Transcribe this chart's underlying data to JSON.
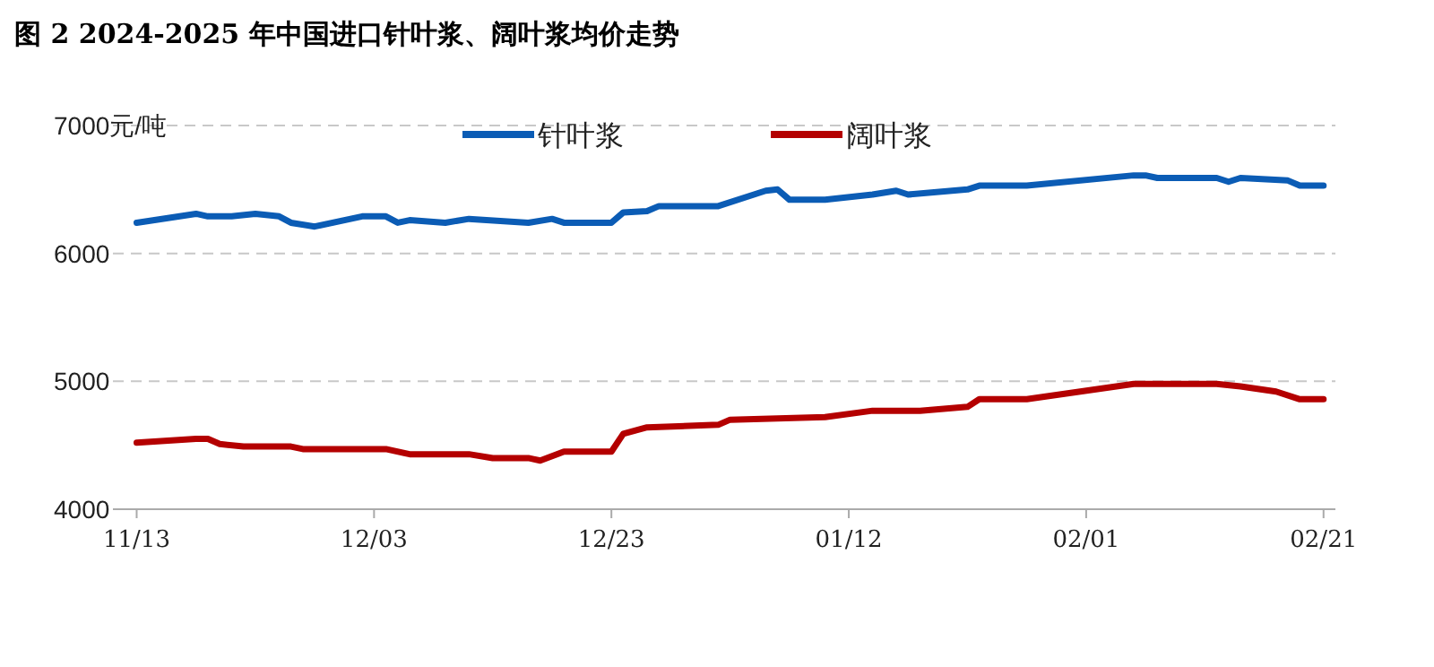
{
  "chart_data": {
    "type": "line",
    "title": "图 2 2024-2025 年中国进口针叶浆、阔叶浆均价走势",
    "xlim": [
      "2024-11-11",
      "2025-02-22"
    ],
    "xticks": [
      {
        "value": "2024-11-13",
        "label": "11/13"
      },
      {
        "value": "2024-12-03",
        "label": "12/03"
      },
      {
        "value": "2024-12-23",
        "label": "12/23"
      },
      {
        "value": "2025-01-12",
        "label": "01/12"
      },
      {
        "value": "2025-02-01",
        "label": "02/01"
      },
      {
        "value": "2025-02-21",
        "label": "02/21"
      }
    ],
    "ylim": [
      4000,
      7000
    ],
    "yticks": [
      4000,
      5000,
      6000,
      {
        "value": 7000,
        "label": "7000元/吨"
      }
    ],
    "grid": "y",
    "legend": "top",
    "line_style": "solid",
    "marker": "none",
    "series": [
      {
        "name": "针叶浆",
        "color": "#0b5cb5",
        "x": [
          "2024-11-13",
          "2024-11-18",
          "2024-11-19",
          "2024-11-21",
          "2024-11-23",
          "2024-11-25",
          "2024-11-26",
          "2024-11-28",
          "2024-12-02",
          "2024-12-04",
          "2024-12-05",
          "2024-12-06",
          "2024-12-09",
          "2024-12-11",
          "2024-12-16",
          "2024-12-18",
          "2024-12-19",
          "2024-12-23",
          "2024-12-24",
          "2024-12-26",
          "2024-12-27",
          "2025-01-01",
          "2025-01-05",
          "2025-01-06",
          "2025-01-07",
          "2025-01-10",
          "2025-01-14",
          "2025-01-16",
          "2025-01-17",
          "2025-01-22",
          "2025-01-23",
          "2025-01-27",
          "2025-02-05",
          "2025-02-06",
          "2025-02-07",
          "2025-02-12",
          "2025-02-13",
          "2025-02-14",
          "2025-02-18",
          "2025-02-19",
          "2025-02-21"
        ],
        "values": [
          6240,
          6310,
          6290,
          6290,
          6310,
          6290,
          6240,
          6210,
          6290,
          6290,
          6240,
          6260,
          6240,
          6270,
          6240,
          6270,
          6240,
          6240,
          6320,
          6330,
          6370,
          6370,
          6490,
          6500,
          6420,
          6420,
          6460,
          6490,
          6460,
          6500,
          6530,
          6530,
          6610,
          6610,
          6590,
          6590,
          6560,
          6590,
          6570,
          6530,
          6530
        ]
      },
      {
        "name": "阔叶浆",
        "color": "#b40000",
        "x": [
          "2024-11-13",
          "2024-11-18",
          "2024-11-19",
          "2024-11-20",
          "2024-11-22",
          "2024-11-26",
          "2024-11-27",
          "2024-12-04",
          "2024-12-06",
          "2024-12-11",
          "2024-12-13",
          "2024-12-16",
          "2024-12-17",
          "2024-12-19",
          "2024-12-23",
          "2024-12-24",
          "2024-12-26",
          "2025-01-01",
          "2025-01-02",
          "2025-01-10",
          "2025-01-14",
          "2025-01-18",
          "2025-01-22",
          "2025-01-23",
          "2025-01-27",
          "2025-02-05",
          "2025-02-12",
          "2025-02-14",
          "2025-02-17",
          "2025-02-19",
          "2025-02-21"
        ],
        "values": [
          4520,
          4550,
          4550,
          4510,
          4490,
          4490,
          4470,
          4470,
          4430,
          4430,
          4400,
          4400,
          4380,
          4450,
          4450,
          4590,
          4640,
          4660,
          4700,
          4720,
          4770,
          4770,
          4800,
          4860,
          4860,
          4980,
          4980,
          4960,
          4920,
          4860,
          4860
        ]
      }
    ]
  }
}
